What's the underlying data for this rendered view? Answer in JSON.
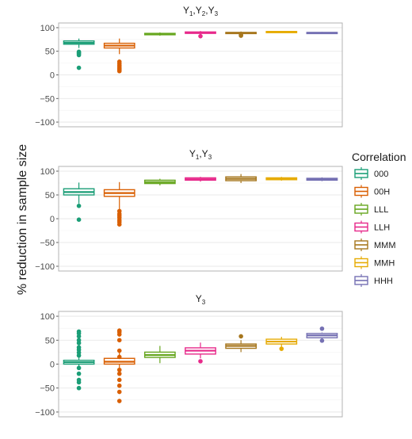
{
  "ylabel": "% reduction in sample size",
  "legend": {
    "title": "Correlation",
    "items": [
      {
        "label": "000",
        "color": "#1b9e77"
      },
      {
        "label": "00H",
        "color": "#d95f02"
      },
      {
        "label": "LLL",
        "color": "#66a61e"
      },
      {
        "label": "LLH",
        "color": "#e7298a"
      },
      {
        "label": "MMM",
        "color": "#a6761d"
      },
      {
        "label": "MMH",
        "color": "#e6ab02"
      },
      {
        "label": "HHH",
        "color": "#7570b3"
      }
    ]
  },
  "chart_data": [
    {
      "type": "box",
      "title_base": "Y",
      "title_subs": [
        "1",
        "2",
        "3"
      ],
      "ylim": [
        -110,
        110
      ],
      "yticks": [
        100,
        50,
        0,
        -50,
        -100
      ],
      "grid": true,
      "categories": [
        "000",
        "00H",
        "LLL",
        "LLH",
        "MMM",
        "MMH",
        "HHH"
      ],
      "boxes": [
        {
          "q1": 65,
          "median": 68,
          "q3": 72,
          "lo": 57,
          "hi": 77,
          "outliers": [
            49,
            47,
            45,
            42,
            15
          ]
        },
        {
          "q1": 57,
          "median": 62,
          "q3": 67,
          "lo": 44,
          "hi": 77,
          "outliers": [
            28,
            24,
            20,
            17,
            14,
            12,
            10,
            8
          ]
        },
        {
          "q1": 85,
          "median": 86,
          "q3": 88,
          "lo": 83,
          "hi": 90,
          "outliers": []
        },
        {
          "q1": 88,
          "median": 89,
          "q3": 91,
          "lo": 85,
          "hi": 93,
          "outliers": [
            82
          ]
        },
        {
          "q1": 88,
          "median": 89,
          "q3": 90,
          "lo": 86,
          "hi": 92,
          "outliers": [
            83,
            85
          ]
        },
        {
          "q1": 90,
          "median": 91,
          "q3": 92,
          "lo": 89,
          "hi": 93,
          "outliers": []
        },
        {
          "q1": 88,
          "median": 89,
          "q3": 90,
          "lo": 87,
          "hi": 91,
          "outliers": []
        }
      ]
    },
    {
      "type": "box",
      "title_base": "Y",
      "title_subs": [
        "1",
        "3"
      ],
      "ylim": [
        -110,
        110
      ],
      "yticks": [
        100,
        50,
        0,
        -50,
        -100
      ],
      "grid": true,
      "categories": [
        "000",
        "00H",
        "LLL",
        "LLH",
        "MMM",
        "MMH",
        "HHH"
      ],
      "boxes": [
        {
          "q1": 50,
          "median": 56,
          "q3": 63,
          "lo": 32,
          "hi": 76,
          "outliers": [
            27,
            -2
          ]
        },
        {
          "q1": 47,
          "median": 54,
          "q3": 61,
          "lo": 20,
          "hi": 77,
          "outliers": [
            16,
            10,
            6,
            2,
            -3,
            -7,
            -12
          ]
        },
        {
          "q1": 74,
          "median": 77,
          "q3": 81,
          "lo": 70,
          "hi": 84,
          "outliers": []
        },
        {
          "q1": 81,
          "median": 83,
          "q3": 86,
          "lo": 78,
          "hi": 88,
          "outliers": []
        },
        {
          "q1": 80,
          "median": 84,
          "q3": 88,
          "lo": 75,
          "hi": 94,
          "outliers": []
        },
        {
          "q1": 82,
          "median": 84,
          "q3": 86,
          "lo": 80,
          "hi": 88,
          "outliers": []
        },
        {
          "q1": 81,
          "median": 83,
          "q3": 85,
          "lo": 79,
          "hi": 87,
          "outliers": []
        }
      ]
    },
    {
      "type": "box",
      "title_base": "Y",
      "title_subs": [
        "3"
      ],
      "ylim": [
        -110,
        110
      ],
      "yticks": [
        100,
        50,
        0,
        -50,
        -100
      ],
      "grid": true,
      "categories": [
        "000",
        "00H",
        "LLL",
        "LLH",
        "MMM",
        "MMH",
        "HHH"
      ],
      "boxes": [
        {
          "q1": 0,
          "median": 4,
          "q3": 8,
          "lo": -10,
          "hi": 20,
          "outliers": [
            68,
            64,
            58,
            50,
            44,
            35,
            30,
            24,
            18,
            -8,
            -20,
            -33,
            -38,
            -50
          ]
        },
        {
          "q1": 0,
          "median": 5,
          "q3": 12,
          "lo": -12,
          "hi": 28,
          "outliers": [
            70,
            67,
            62,
            50,
            28,
            15,
            -12,
            -20,
            -33,
            -45,
            -58,
            -77
          ]
        },
        {
          "q1": 14,
          "median": 19,
          "q3": 25,
          "lo": 2,
          "hi": 38,
          "outliers": []
        },
        {
          "q1": 21,
          "median": 28,
          "q3": 34,
          "lo": 12,
          "hi": 45,
          "outliers": [
            6
          ]
        },
        {
          "q1": 33,
          "median": 38,
          "q3": 42,
          "lo": 25,
          "hi": 50,
          "outliers": [
            58
          ]
        },
        {
          "q1": 42,
          "median": 47,
          "q3": 52,
          "lo": 36,
          "hi": 57,
          "outliers": [
            32
          ]
        },
        {
          "q1": 55,
          "median": 60,
          "q3": 64,
          "lo": 50,
          "hi": 66,
          "outliers": [
            74,
            49
          ]
        }
      ]
    }
  ]
}
